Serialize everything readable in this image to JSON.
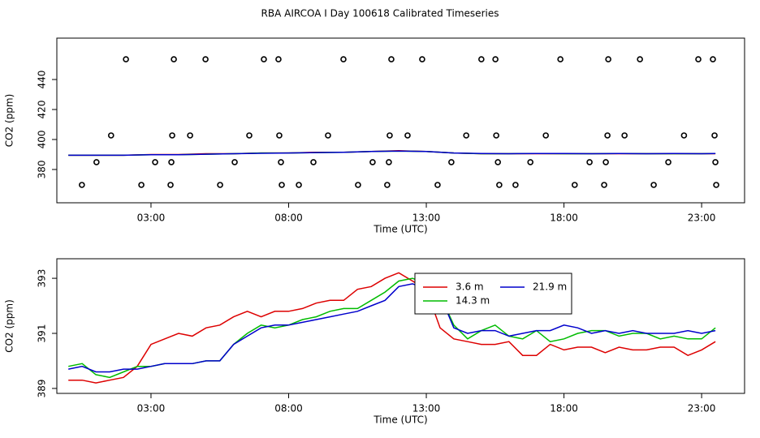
{
  "title": "RBA AIRCOA I  Day 100618  Calibrated Timeseries",
  "chart_data": [
    {
      "type": "line",
      "xlabel": "Time (UTC)",
      "ylabel": "CO2 (ppm)",
      "xlim": [
        -0.42,
        24.56
      ],
      "ylim": [
        357.8,
        467.6
      ],
      "xticks": [
        {
          "value": 3,
          "label": "03:00"
        },
        {
          "value": 8,
          "label": "08:00"
        },
        {
          "value": 13,
          "label": "13:00"
        },
        {
          "value": 18,
          "label": "18:00"
        },
        {
          "value": 23,
          "label": "23:00"
        }
      ],
      "yticks": [
        380,
        400,
        420,
        440
      ],
      "x": [
        0,
        1,
        2,
        3,
        4,
        5,
        6,
        7,
        8,
        9,
        10,
        11,
        12,
        13,
        14,
        15,
        16,
        17,
        18,
        19,
        20,
        21,
        22,
        23,
        23.5
      ],
      "series": [
        {
          "color": "#dd0000",
          "values": [
            389.5,
            389.5,
            389.5,
            390,
            390,
            390.5,
            390.5,
            391,
            391,
            391.5,
            391.5,
            392,
            392.5,
            392,
            391,
            390.5,
            390.5,
            390.5,
            390.5,
            390.5,
            390.5,
            390.5,
            390.5,
            390.5,
            390.5
          ]
        },
        {
          "color": "#00bb00",
          "values": [
            389.5,
            389.5,
            389.5,
            389.8,
            389.8,
            390.2,
            390.5,
            391,
            391,
            391.3,
            391.5,
            392,
            392.3,
            392,
            391,
            390.5,
            390.5,
            390.7,
            390.5,
            390.5,
            390.7,
            390.5,
            390.5,
            390.5,
            390.7
          ]
        },
        {
          "color": "#0000cc",
          "values": [
            389.5,
            389.5,
            389.5,
            389.8,
            389.8,
            390.2,
            390.5,
            390.8,
            391,
            391.3,
            391.5,
            392,
            392.3,
            392,
            391,
            390.7,
            390.5,
            390.7,
            390.7,
            390.5,
            390.7,
            390.5,
            390.7,
            390.5,
            390.7
          ]
        }
      ],
      "points": {
        "x": [
          2.09,
          3.83,
          4.98,
          7.1,
          7.63,
          9.99,
          11.73,
          12.85,
          15.0,
          15.51,
          17.87,
          19.61,
          20.76,
          22.88,
          23.41,
          1.55,
          3.77,
          4.42,
          6.57,
          7.66,
          9.43,
          11.67,
          12.32,
          14.45,
          15.54,
          17.34,
          19.58,
          20.2,
          22.36,
          23.47,
          1.02,
          3.15,
          3.74,
          6.04,
          7.72,
          8.9,
          11.05,
          11.64,
          13.91,
          15.6,
          16.78,
          18.93,
          19.52,
          21.79,
          23.5,
          0.49,
          2.65,
          3.71,
          5.51,
          7.75,
          8.37,
          10.52,
          11.58,
          13.41,
          15.65,
          16.24,
          18.39,
          19.46,
          21.26,
          23.53
        ],
        "values": [
          453.5,
          453.5,
          453.5,
          453.5,
          453.5,
          453.5,
          453.5,
          453.5,
          453.5,
          453.5,
          453.5,
          453.5,
          453.5,
          453.5,
          453.5,
          402.7,
          402.7,
          402.7,
          402.7,
          402.7,
          402.7,
          402.7,
          402.7,
          402.7,
          402.7,
          402.7,
          402.7,
          402.7,
          402.7,
          402.7,
          384.9,
          384.9,
          384.9,
          384.9,
          384.9,
          384.9,
          384.9,
          384.9,
          384.9,
          384.9,
          384.9,
          384.9,
          384.9,
          384.9,
          384.9,
          369.7,
          369.7,
          369.7,
          369.7,
          369.7,
          369.7,
          369.7,
          369.7,
          369.7,
          369.7,
          369.7,
          369.7,
          369.7,
          369.7,
          369.7
        ]
      }
    },
    {
      "type": "line",
      "xlabel": "Time (UTC)",
      "ylabel": "CO2 (ppm)",
      "xlim": [
        -0.42,
        24.56
      ],
      "ylim": [
        388.82,
        393.71
      ],
      "xticks": [
        {
          "value": 3,
          "label": "03:00"
        },
        {
          "value": 8,
          "label": "08:00"
        },
        {
          "value": 13,
          "label": "13:00"
        },
        {
          "value": 18,
          "label": "18:00"
        },
        {
          "value": 23,
          "label": "23:00"
        }
      ],
      "yticks": [
        389,
        391,
        393
      ],
      "x": [
        0,
        0.5,
        1,
        1.5,
        2,
        2.5,
        3,
        3.5,
        4,
        4.5,
        5,
        5.5,
        6,
        6.5,
        7,
        7.5,
        8,
        8.5,
        9,
        9.5,
        10,
        10.5,
        11,
        11.5,
        12,
        12.5,
        13,
        13.5,
        14,
        14.5,
        15,
        15.5,
        16,
        16.5,
        17,
        17.5,
        18,
        18.5,
        19,
        19.5,
        20,
        20.5,
        21,
        21.5,
        22,
        22.5,
        23,
        23.5
      ],
      "series": [
        {
          "name": "3.6 m",
          "color": "#dd0000",
          "values": [
            389.3,
            389.3,
            389.2,
            389.3,
            389.4,
            389.8,
            390.6,
            390.8,
            391.0,
            390.9,
            391.2,
            391.3,
            391.6,
            391.8,
            391.6,
            391.8,
            391.8,
            391.9,
            392.1,
            392.2,
            392.2,
            392.6,
            392.7,
            393.0,
            393.2,
            392.9,
            392.6,
            391.2,
            390.8,
            390.7,
            390.6,
            390.6,
            390.7,
            390.2,
            390.2,
            390.6,
            390.4,
            390.5,
            390.5,
            390.3,
            390.5,
            390.4,
            390.4,
            390.5,
            390.5,
            390.2,
            390.4,
            390.7
          ]
        },
        {
          "name": "14.3 m",
          "color": "#00bb00",
          "values": [
            389.8,
            389.9,
            389.5,
            389.4,
            389.6,
            389.8,
            389.8,
            389.9,
            389.9,
            389.9,
            390.0,
            390.0,
            390.6,
            391.0,
            391.3,
            391.2,
            391.3,
            391.5,
            391.6,
            391.8,
            391.9,
            391.9,
            392.2,
            392.5,
            392.9,
            393.0,
            392.8,
            392.4,
            391.3,
            390.8,
            391.1,
            391.3,
            390.9,
            390.8,
            391.1,
            390.7,
            390.8,
            391.0,
            391.1,
            391.1,
            390.9,
            391.0,
            391.0,
            390.8,
            390.9,
            390.8,
            390.8,
            391.2
          ]
        },
        {
          "name": "21.9 m",
          "color": "#0000cc",
          "values": [
            389.7,
            389.8,
            389.6,
            389.6,
            389.7,
            389.7,
            389.8,
            389.9,
            389.9,
            389.9,
            390.0,
            390.0,
            390.6,
            390.9,
            391.2,
            391.3,
            391.3,
            391.4,
            391.5,
            391.6,
            391.7,
            391.8,
            392.0,
            392.2,
            392.7,
            392.8,
            392.6,
            392.4,
            391.2,
            391.0,
            391.1,
            391.1,
            390.9,
            391.0,
            391.1,
            391.1,
            391.3,
            391.2,
            391.0,
            391.1,
            391.0,
            391.1,
            391.0,
            391.0,
            391.0,
            391.1,
            391.0,
            391.1
          ]
        }
      ]
    }
  ]
}
